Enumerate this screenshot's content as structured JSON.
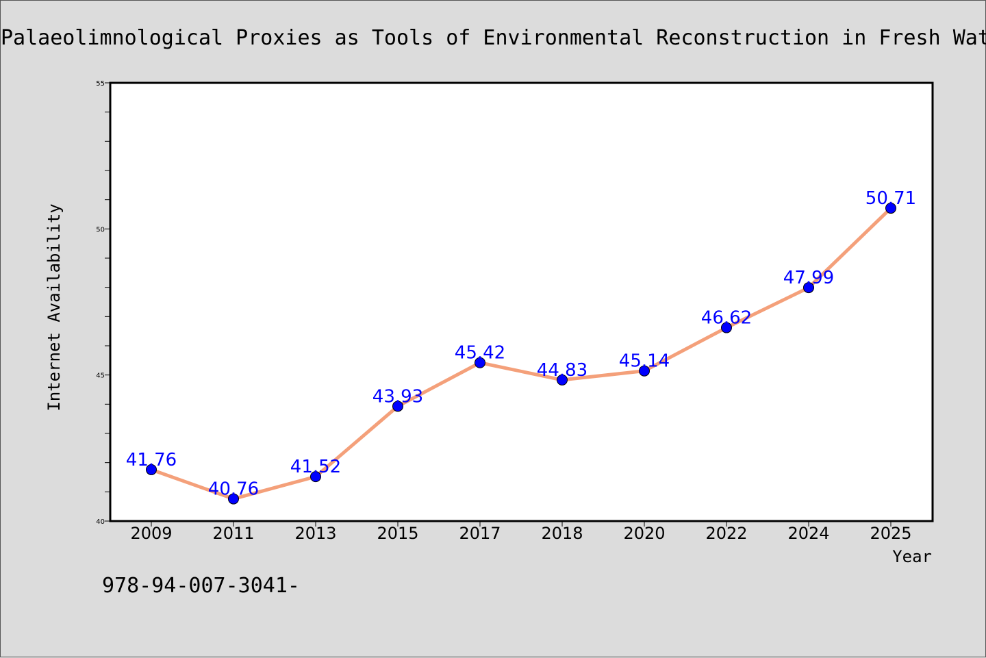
{
  "chart_data": {
    "type": "line",
    "title": "Palaeolimnological Proxies as Tools of Environmental Reconstruction in Fresh Water",
    "xlabel": "Year",
    "ylabel": "Internet Availability",
    "categories": [
      "2009",
      "2011",
      "2013",
      "2015",
      "2017",
      "2018",
      "2020",
      "2022",
      "2024",
      "2025"
    ],
    "series": [
      {
        "values": [
          41.76,
          40.76,
          41.52,
          43.93,
          45.42,
          44.83,
          45.14,
          46.62,
          47.99,
          50.71
        ],
        "labels": [
          "41.76",
          "40.76",
          "41.52",
          "43.93",
          "45.42",
          "44.83",
          "45.14",
          "46.62",
          "47.99",
          "50.71"
        ],
        "line_color": "#f4a07a",
        "marker_color": "#0000ff",
        "label_color": "#0000ff"
      }
    ],
    "ylim": [
      40,
      55
    ],
    "yticks": [
      40,
      45,
      50,
      55
    ],
    "grid": false,
    "legend": "none"
  },
  "footer": {
    "text": "978-94-007-3041-"
  }
}
